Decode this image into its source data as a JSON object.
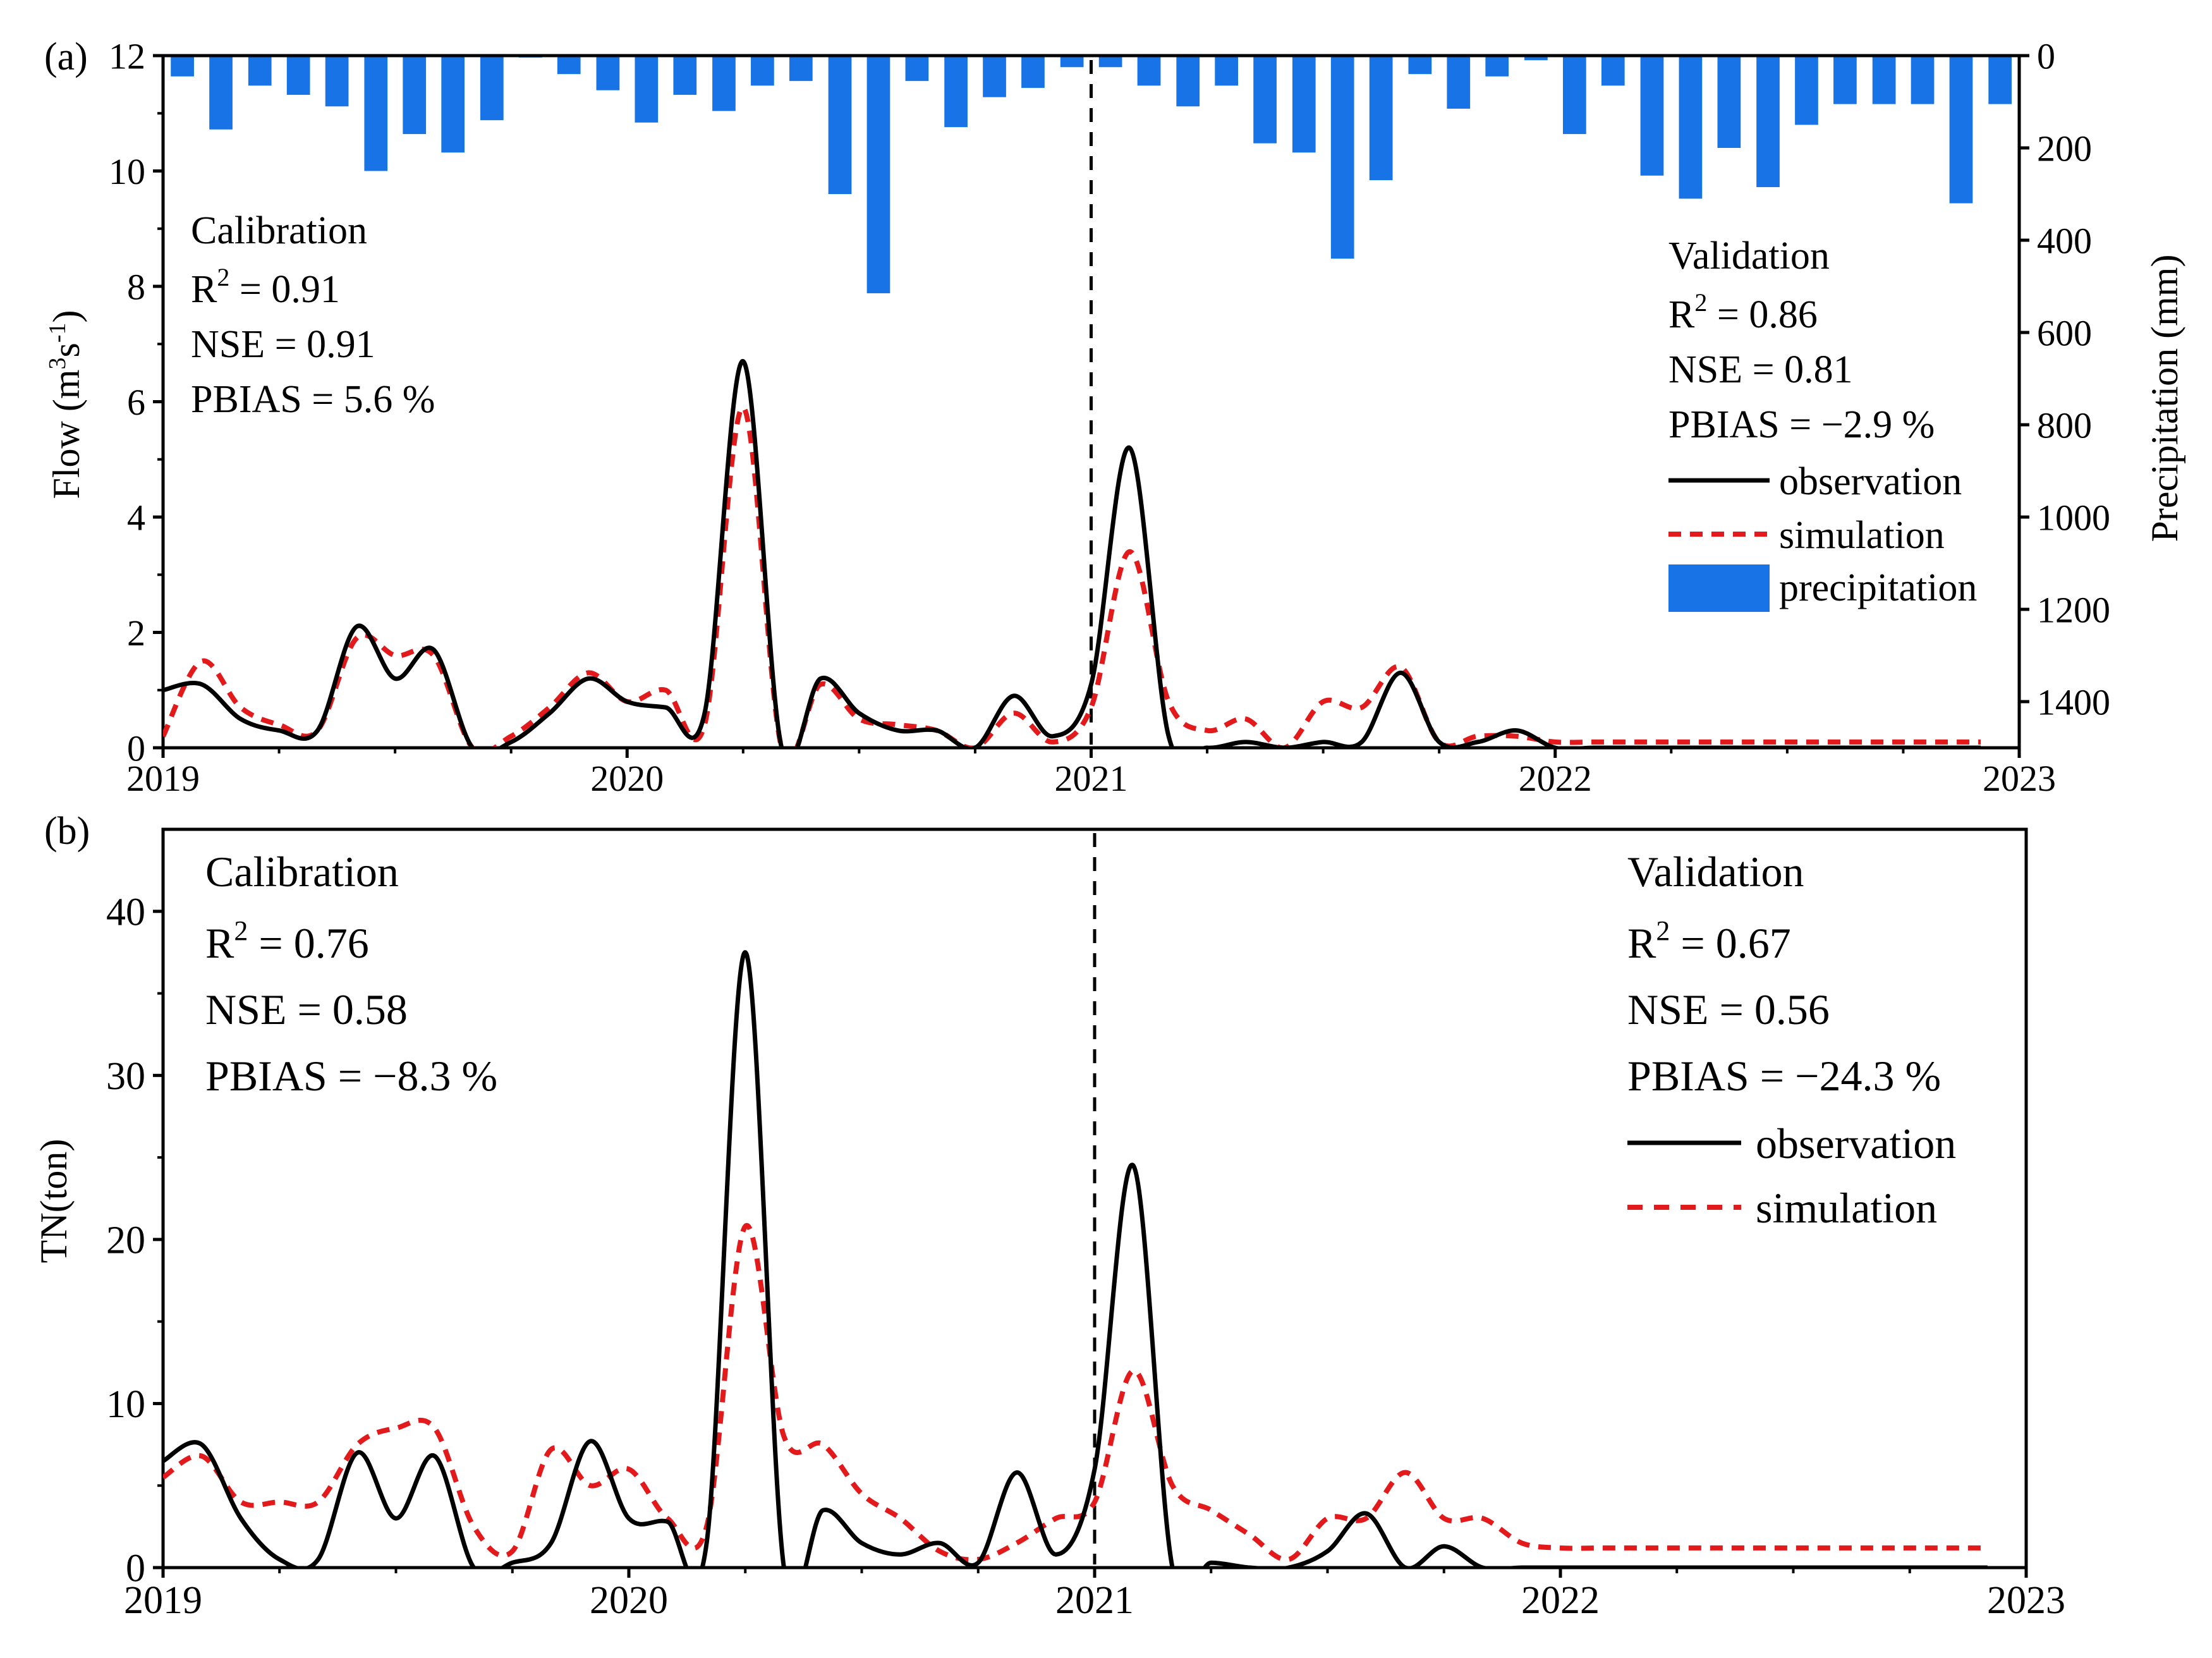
{
  "colors": {
    "observation": "#000000",
    "simulation": "#e31a1c",
    "precipitation": "#1874e6"
  },
  "chart_data": [
    {
      "panel_label": "(a)",
      "type": "line",
      "ylabel": "Flow (m³s⁻¹)",
      "ylabel_main": "Flow (m",
      "ylabel_sup1": "3",
      "ylabel_mid": "s",
      "ylabel_sup2": "-1",
      "ylabel_end": ")",
      "y2label": "Precipitation (mm)",
      "xlim": [
        2019,
        2023
      ],
      "ylim": [
        0,
        12
      ],
      "y2lim": [
        0,
        1500
      ],
      "x_ticks": [
        "2019",
        "2020",
        "2021",
        "2022",
        "2023"
      ],
      "y_ticks": [
        "0",
        "2",
        "4",
        "6",
        "8",
        "10",
        "12"
      ],
      "y2_ticks": [
        "0",
        "200",
        "400",
        "600",
        "800",
        "1000",
        "1200",
        "1400"
      ],
      "divider_x": 2021,
      "calibration": {
        "title": "Calibration",
        "r2_prefix": "R",
        "r2_sup": "2",
        "r2_value": " = 0.91",
        "nse": "NSE = 0.91",
        "pbias": "PBIAS = 5.6 %"
      },
      "validation": {
        "title": "Validation",
        "r2_prefix": "R",
        "r2_sup": "2",
        "r2_value": " = 0.86",
        "nse": "NSE = 0.81",
        "pbias": "PBIAS = −2.9 %"
      },
      "legend": [
        "observation",
        "simulation",
        "precipitation"
      ],
      "x": [
        2019.0,
        2019.083,
        2019.167,
        2019.25,
        2019.333,
        2019.417,
        2019.5,
        2019.583,
        2019.667,
        2019.75,
        2019.833,
        2019.917,
        2020.0,
        2020.083,
        2020.167,
        2020.25,
        2020.333,
        2020.417,
        2020.5,
        2020.583,
        2020.667,
        2020.75,
        2020.833,
        2020.917,
        2021.0,
        2021.083,
        2021.167,
        2021.25,
        2021.333,
        2021.417,
        2021.5,
        2021.583,
        2021.667,
        2021.75,
        2021.833,
        2021.917,
        2022.0,
        2022.083,
        2022.167,
        2022.25,
        2022.333,
        2022.417,
        2022.5,
        2022.583,
        2022.667,
        2022.75,
        2022.833,
        2022.917
      ],
      "series": [
        {
          "name": "observation",
          "values": [
            1.0,
            1.1,
            0.5,
            0.3,
            0.3,
            2.1,
            1.2,
            1.7,
            0.0,
            0.1,
            0.6,
            1.2,
            0.8,
            0.7,
            0.6,
            6.7,
            0.0,
            1.2,
            0.6,
            0.3,
            0.3,
            0.0,
            0.9,
            0.2,
            1.1,
            5.2,
            0.2,
            0.0,
            0.1,
            0.0,
            0.1,
            0.1,
            1.3,
            0.1,
            0.1,
            0.3,
            0.0,
            0.0,
            0.0,
            0.0,
            0.0,
            0.0,
            0.0,
            0.0,
            0.0,
            0.0,
            0.0,
            0.0
          ]
        },
        {
          "name": "simulation",
          "values": [
            0.2,
            1.5,
            0.7,
            0.4,
            0.3,
            1.9,
            1.6,
            1.6,
            0.0,
            0.2,
            0.7,
            1.3,
            0.8,
            1.0,
            0.4,
            5.9,
            0.0,
            1.1,
            0.5,
            0.4,
            0.3,
            0.0,
            0.6,
            0.1,
            0.7,
            3.4,
            0.8,
            0.3,
            0.5,
            0.0,
            0.8,
            0.7,
            1.4,
            0.1,
            0.2,
            0.2,
            0.1,
            0.1,
            0.1,
            0.1,
            0.1,
            0.1,
            0.1,
            0.1,
            0.1,
            0.1,
            0.1,
            0.1
          ]
        },
        {
          "name": "precipitation",
          "unit": "mm",
          "values": [
            45,
            160,
            65,
            85,
            110,
            250,
            170,
            210,
            140,
            0,
            40,
            75,
            145,
            85,
            120,
            65,
            55,
            300,
            515,
            55,
            155,
            90,
            70,
            25,
            25,
            65,
            110,
            65,
            190,
            210,
            440,
            270,
            40,
            115,
            45,
            10,
            170,
            65,
            260,
            310,
            200,
            285,
            150,
            105,
            105,
            105,
            320,
            105
          ]
        }
      ]
    },
    {
      "panel_label": "(b)",
      "type": "line",
      "ylabel": "TN(ton)",
      "xlim": [
        2019,
        2023
      ],
      "ylim": [
        0,
        45
      ],
      "x_ticks": [
        "2019",
        "2020",
        "2021",
        "2022",
        "2023"
      ],
      "y_ticks": [
        "0",
        "10",
        "20",
        "30",
        "40"
      ],
      "divider_x": 2021,
      "calibration": {
        "title": "Calibration",
        "r2_prefix": "R",
        "r2_sup": "2",
        "r2_value": " = 0.76",
        "nse": "NSE = 0.58",
        "pbias": "PBIAS = −8.3 %"
      },
      "validation": {
        "title": "Validation",
        "r2_prefix": "R",
        "r2_sup": "2",
        "r2_value": " = 0.67",
        "nse": "NSE = 0.56",
        "pbias": "PBIAS = −24.3 %"
      },
      "legend": [
        "observation",
        "simulation"
      ],
      "x": [
        2019.0,
        2019.083,
        2019.167,
        2019.25,
        2019.333,
        2019.417,
        2019.5,
        2019.583,
        2019.667,
        2019.75,
        2019.833,
        2019.917,
        2020.0,
        2020.083,
        2020.167,
        2020.25,
        2020.333,
        2020.417,
        2020.5,
        2020.583,
        2020.667,
        2020.75,
        2020.833,
        2020.917,
        2021.0,
        2021.083,
        2021.167,
        2021.25,
        2021.333,
        2021.417,
        2021.5,
        2021.583,
        2021.667,
        2021.75,
        2021.833,
        2021.917,
        2022.0,
        2022.083,
        2022.167,
        2022.25,
        2022.333,
        2022.417,
        2022.5,
        2022.583,
        2022.667,
        2022.75,
        2022.833,
        2022.917
      ],
      "series": [
        {
          "name": "observation",
          "values": [
            6.5,
            7.5,
            3.0,
            0.5,
            0.5,
            7.0,
            3.0,
            6.8,
            0.0,
            0.3,
            1.5,
            7.7,
            3.0,
            2.8,
            1.5,
            37.5,
            0.0,
            3.5,
            1.5,
            0.8,
            1.5,
            0.3,
            5.8,
            0.8,
            6.0,
            24.5,
            0.0,
            0.3,
            0.0,
            0.0,
            1.0,
            3.3,
            0.0,
            1.3,
            0.0,
            0.0,
            0.0,
            0.0,
            0.0,
            0.0,
            0.0,
            0.0,
            0.0,
            0.0,
            0.0,
            0.0,
            0.0,
            0.0
          ]
        },
        {
          "name": "simulation",
          "values": [
            5.5,
            6.8,
            4.0,
            4.0,
            4.0,
            7.5,
            8.5,
            8.5,
            2.5,
            1.0,
            7.2,
            5.0,
            6.0,
            3.0,
            2.5,
            20.8,
            8.0,
            7.5,
            4.5,
            3.0,
            1.0,
            0.5,
            1.5,
            3.0,
            4.0,
            12.0,
            5.0,
            3.5,
            2.0,
            0.5,
            3.0,
            3.0,
            5.8,
            3.0,
            3.0,
            1.5,
            1.2,
            1.2,
            1.2,
            1.2,
            1.2,
            1.2,
            1.2,
            1.2,
            1.2,
            1.2,
            1.2,
            1.2
          ]
        }
      ]
    }
  ]
}
